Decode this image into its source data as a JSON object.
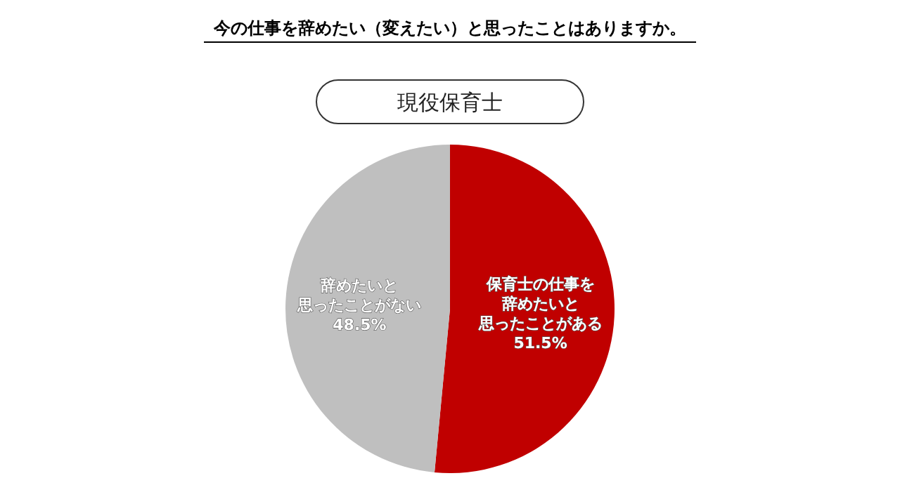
{
  "chart_data": {
    "type": "pie",
    "title": "今の仕事を辞めたい（変えたい）と思ったことはありますか。",
    "subtitle": "現役保育士",
    "categories": [
      "保育士の仕事を辞めたいと思ったことがある",
      "辞めたいと思ったことがない"
    ],
    "values": [
      51.5,
      48.5
    ],
    "colors": [
      "#c00000",
      "#bfbfbf"
    ],
    "value_labels": [
      "51.5%",
      "48.5%"
    ]
  }
}
